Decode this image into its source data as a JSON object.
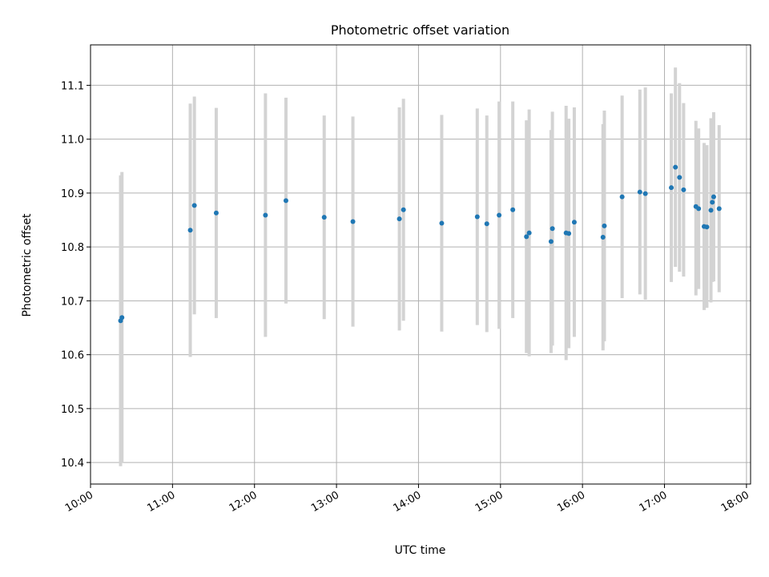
{
  "chart_data": {
    "type": "scatter",
    "title": "Photometric offset variation",
    "xlabel": "UTC time",
    "ylabel": "Photometric offset",
    "xlim": [
      "10:00",
      "18:03"
    ],
    "ylim": [
      10.36,
      11.175
    ],
    "x_ticks": [
      "10:00",
      "11:00",
      "12:00",
      "13:00",
      "14:00",
      "15:00",
      "16:00",
      "17:00",
      "18:00"
    ],
    "y_ticks": [
      "10.4",
      "10.5",
      "10.6",
      "10.7",
      "10.8",
      "10.9",
      "11.0",
      "11.1"
    ],
    "grid": true,
    "point_color": "#1f77b4",
    "errorbar_color": "#d3d3d3",
    "points": [
      {
        "x": "10:22",
        "y": 10.663,
        "lo": 10.393,
        "hi": 10.933
      },
      {
        "x": "10:23",
        "y": 10.669,
        "lo": 10.399,
        "hi": 10.939
      },
      {
        "x": "11:13",
        "y": 10.831,
        "lo": 10.596,
        "hi": 11.066
      },
      {
        "x": "11:16",
        "y": 10.877,
        "lo": 10.675,
        "hi": 11.079
      },
      {
        "x": "11:32",
        "y": 10.863,
        "lo": 10.668,
        "hi": 11.058
      },
      {
        "x": "12:08",
        "y": 10.859,
        "lo": 10.633,
        "hi": 11.085
      },
      {
        "x": "12:23",
        "y": 10.886,
        "lo": 10.695,
        "hi": 11.077
      },
      {
        "x": "12:51",
        "y": 10.855,
        "lo": 10.666,
        "hi": 11.044
      },
      {
        "x": "13:12",
        "y": 10.847,
        "lo": 10.652,
        "hi": 11.042
      },
      {
        "x": "13:46",
        "y": 10.852,
        "lo": 10.645,
        "hi": 11.059
      },
      {
        "x": "13:49",
        "y": 10.869,
        "lo": 10.663,
        "hi": 11.075
      },
      {
        "x": "14:17",
        "y": 10.844,
        "lo": 10.643,
        "hi": 11.045
      },
      {
        "x": "14:43",
        "y": 10.856,
        "lo": 10.655,
        "hi": 11.057
      },
      {
        "x": "14:50",
        "y": 10.843,
        "lo": 10.642,
        "hi": 11.044
      },
      {
        "x": "14:59",
        "y": 10.859,
        "lo": 10.648,
        "hi": 11.07
      },
      {
        "x": "15:09",
        "y": 10.869,
        "lo": 10.668,
        "hi": 11.07
      },
      {
        "x": "15:19",
        "y": 10.819,
        "lo": 10.603,
        "hi": 11.035
      },
      {
        "x": "15:21",
        "y": 10.826,
        "lo": 10.597,
        "hi": 11.055
      },
      {
        "x": "15:37",
        "y": 10.81,
        "lo": 10.603,
        "hi": 11.017
      },
      {
        "x": "15:38",
        "y": 10.834,
        "lo": 10.617,
        "hi": 11.051
      },
      {
        "x": "15:48",
        "y": 10.826,
        "lo": 10.59,
        "hi": 11.062
      },
      {
        "x": "15:50",
        "y": 10.825,
        "lo": 10.612,
        "hi": 11.038
      },
      {
        "x": "15:54",
        "y": 10.846,
        "lo": 10.633,
        "hi": 11.059
      },
      {
        "x": "16:15",
        "y": 10.818,
        "lo": 10.608,
        "hi": 11.028
      },
      {
        "x": "16:16",
        "y": 10.839,
        "lo": 10.625,
        "hi": 11.053
      },
      {
        "x": "16:29",
        "y": 10.893,
        "lo": 10.705,
        "hi": 11.081
      },
      {
        "x": "16:42",
        "y": 10.902,
        "lo": 10.712,
        "hi": 11.092
      },
      {
        "x": "16:46",
        "y": 10.899,
        "lo": 10.702,
        "hi": 11.096
      },
      {
        "x": "17:05",
        "y": 10.91,
        "lo": 10.735,
        "hi": 11.085
      },
      {
        "x": "17:08",
        "y": 10.948,
        "lo": 10.763,
        "hi": 11.133
      },
      {
        "x": "17:11",
        "y": 10.929,
        "lo": 10.754,
        "hi": 11.104
      },
      {
        "x": "17:14",
        "y": 10.906,
        "lo": 10.745,
        "hi": 11.067
      },
      {
        "x": "17:23",
        "y": 10.875,
        "lo": 10.71,
        "hi": 11.034
      },
      {
        "x": "17:25",
        "y": 10.871,
        "lo": 10.722,
        "hi": 11.02
      },
      {
        "x": "17:29",
        "y": 10.838,
        "lo": 10.683,
        "hi": 10.993
      },
      {
        "x": "17:31",
        "y": 10.837,
        "lo": 10.687,
        "hi": 10.989
      },
      {
        "x": "17:34",
        "y": 10.868,
        "lo": 10.697,
        "hi": 11.039
      },
      {
        "x": "17:35",
        "y": 10.883,
        "lo": 10.735,
        "hi": 11.031
      },
      {
        "x": "17:36",
        "y": 10.893,
        "lo": 10.736,
        "hi": 11.05
      },
      {
        "x": "17:40",
        "y": 10.871,
        "lo": 10.716,
        "hi": 11.026
      }
    ]
  }
}
